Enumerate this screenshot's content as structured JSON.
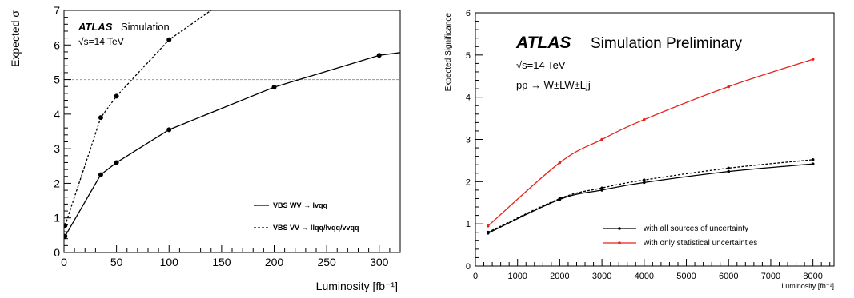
{
  "chart_data": [
    {
      "type": "line",
      "ylabel": "Expected σ",
      "xlabel": "Luminosity [fb⁻¹]",
      "xlim": [
        0,
        320
      ],
      "ylim": [
        0,
        7
      ],
      "x_ticks": [
        "0",
        "50",
        "100",
        "150",
        "200",
        "250",
        "300"
      ],
      "y_ticks": [
        "0",
        "1",
        "2",
        "3",
        "4",
        "5",
        "6",
        "7"
      ],
      "label_atlas": "ATLAS",
      "label_sim": "Simulation",
      "label_energy": "√s=14 TeV",
      "threshold": 5,
      "series": [
        {
          "name": "VBS WV → lvqq",
          "style": "solid",
          "x": [
            0,
            1,
            35,
            50,
            100,
            200,
            300,
            320
          ],
          "y": [
            0.47,
            0.47,
            2.25,
            2.6,
            3.55,
            4.78,
            5.7,
            5.78
          ],
          "markers": [
            true,
            true,
            true,
            true,
            true,
            true,
            true,
            false
          ]
        },
        {
          "name": "VBS VV → llqq/lvqq/vvqq",
          "style": "dashed",
          "x": [
            1,
            35,
            50,
            100,
            140
          ],
          "y": [
            0.78,
            3.9,
            4.52,
            6.15,
            7.0
          ],
          "markers": [
            true,
            true,
            true,
            true,
            false
          ]
        }
      ]
    },
    {
      "type": "line",
      "ylabel": "Expected Significance",
      "xlabel": "Luminosity [fb⁻¹]",
      "xlim": [
        0,
        8500
      ],
      "ylim": [
        0,
        6
      ],
      "x_ticks": [
        "0",
        "1000",
        "2000",
        "3000",
        "4000",
        "5000",
        "6000",
        "7000",
        "8000"
      ],
      "y_ticks": [
        "0",
        "1",
        "2",
        "3",
        "4",
        "5",
        "6"
      ],
      "label_atlas": "ATLAS",
      "label_sim": "Simulation Preliminary",
      "label_energy": "√s=14 TeV",
      "label_process": "pp → W±LW±Ljj",
      "series": [
        {
          "name": "with all sources of uncertainty",
          "color": "#000000",
          "style": "solid",
          "x": [
            300,
            2000,
            3000,
            4000,
            6000,
            8000
          ],
          "y": [
            0.78,
            1.58,
            1.8,
            1.98,
            2.24,
            2.42
          ]
        },
        {
          "name": "",
          "color": "#000000",
          "style": "dashed",
          "x": [
            300,
            2000,
            3000,
            4000,
            6000,
            8000
          ],
          "y": [
            0.8,
            1.6,
            1.85,
            2.04,
            2.32,
            2.52
          ]
        },
        {
          "name": "with only statistical uncertainties",
          "color": "#e8231c",
          "style": "solid",
          "x": [
            300,
            2000,
            3000,
            4000,
            6000,
            8000
          ],
          "y": [
            0.95,
            2.45,
            3.0,
            3.47,
            4.25,
            4.9
          ]
        }
      ]
    }
  ]
}
